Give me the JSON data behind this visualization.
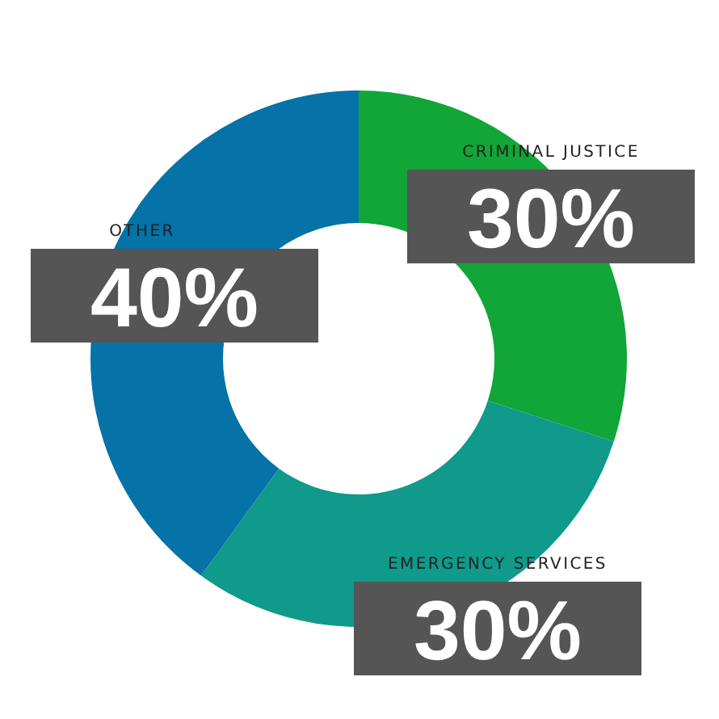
{
  "chart_data": {
    "type": "donut",
    "categories": [
      "CRIMINAL JUSTICE",
      "EMERGENCY SERVICES",
      "OTHER"
    ],
    "values": [
      30,
      30,
      40
    ],
    "colors": [
      "#12a537",
      "#0f9a8c",
      "#0572a8"
    ],
    "value_labels": [
      "30%",
      "30%",
      "40%"
    ],
    "legend": false
  }
}
